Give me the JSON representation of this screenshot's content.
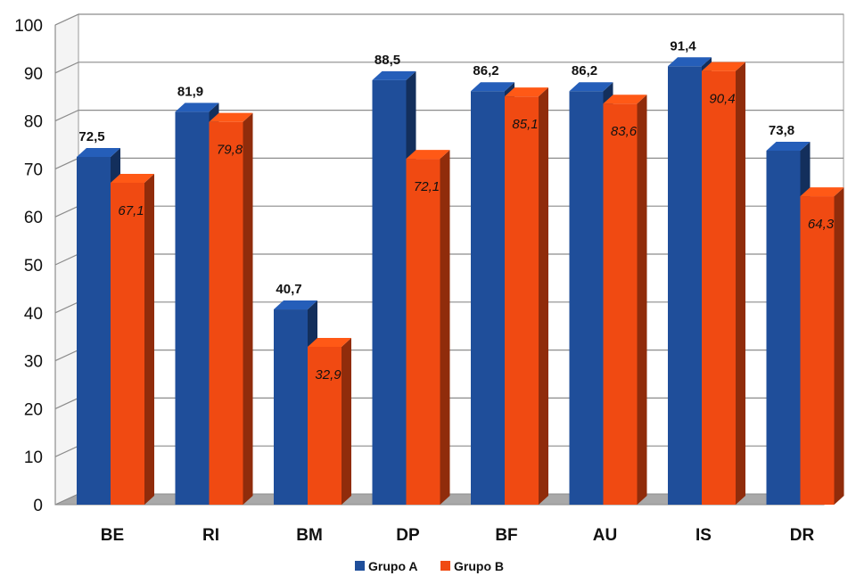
{
  "chart_data": {
    "type": "bar",
    "categories": [
      "BE",
      "RI",
      "BM",
      "DP",
      "BF",
      "AU",
      "IS",
      "DR"
    ],
    "series": [
      {
        "name": "Grupo A",
        "values": [
          72.5,
          81.9,
          40.7,
          88.5,
          86.2,
          86.2,
          91.4,
          73.8
        ],
        "labels": [
          "72,5",
          "81,9",
          "40,7",
          "88,5",
          "86,2",
          "86,2",
          "91,4",
          "73,8"
        ],
        "color": "#1f4e9a"
      },
      {
        "name": "Grupo B",
        "values": [
          67.1,
          79.8,
          32.9,
          72.1,
          85.1,
          83.6,
          90.4,
          64.3
        ],
        "labels": [
          "67,1",
          "79,8",
          "32,9",
          "72,1",
          "85,1",
          "83,6",
          "90,4",
          "64,3"
        ],
        "color": "#f04a12"
      }
    ],
    "yticks": [
      "0",
      "10",
      "20",
      "30",
      "40",
      "50",
      "60",
      "70",
      "80",
      "90",
      "100"
    ],
    "ylim": [
      0,
      100
    ],
    "grid": true,
    "legend_position": "bottom-center",
    "style": "3d-column"
  }
}
